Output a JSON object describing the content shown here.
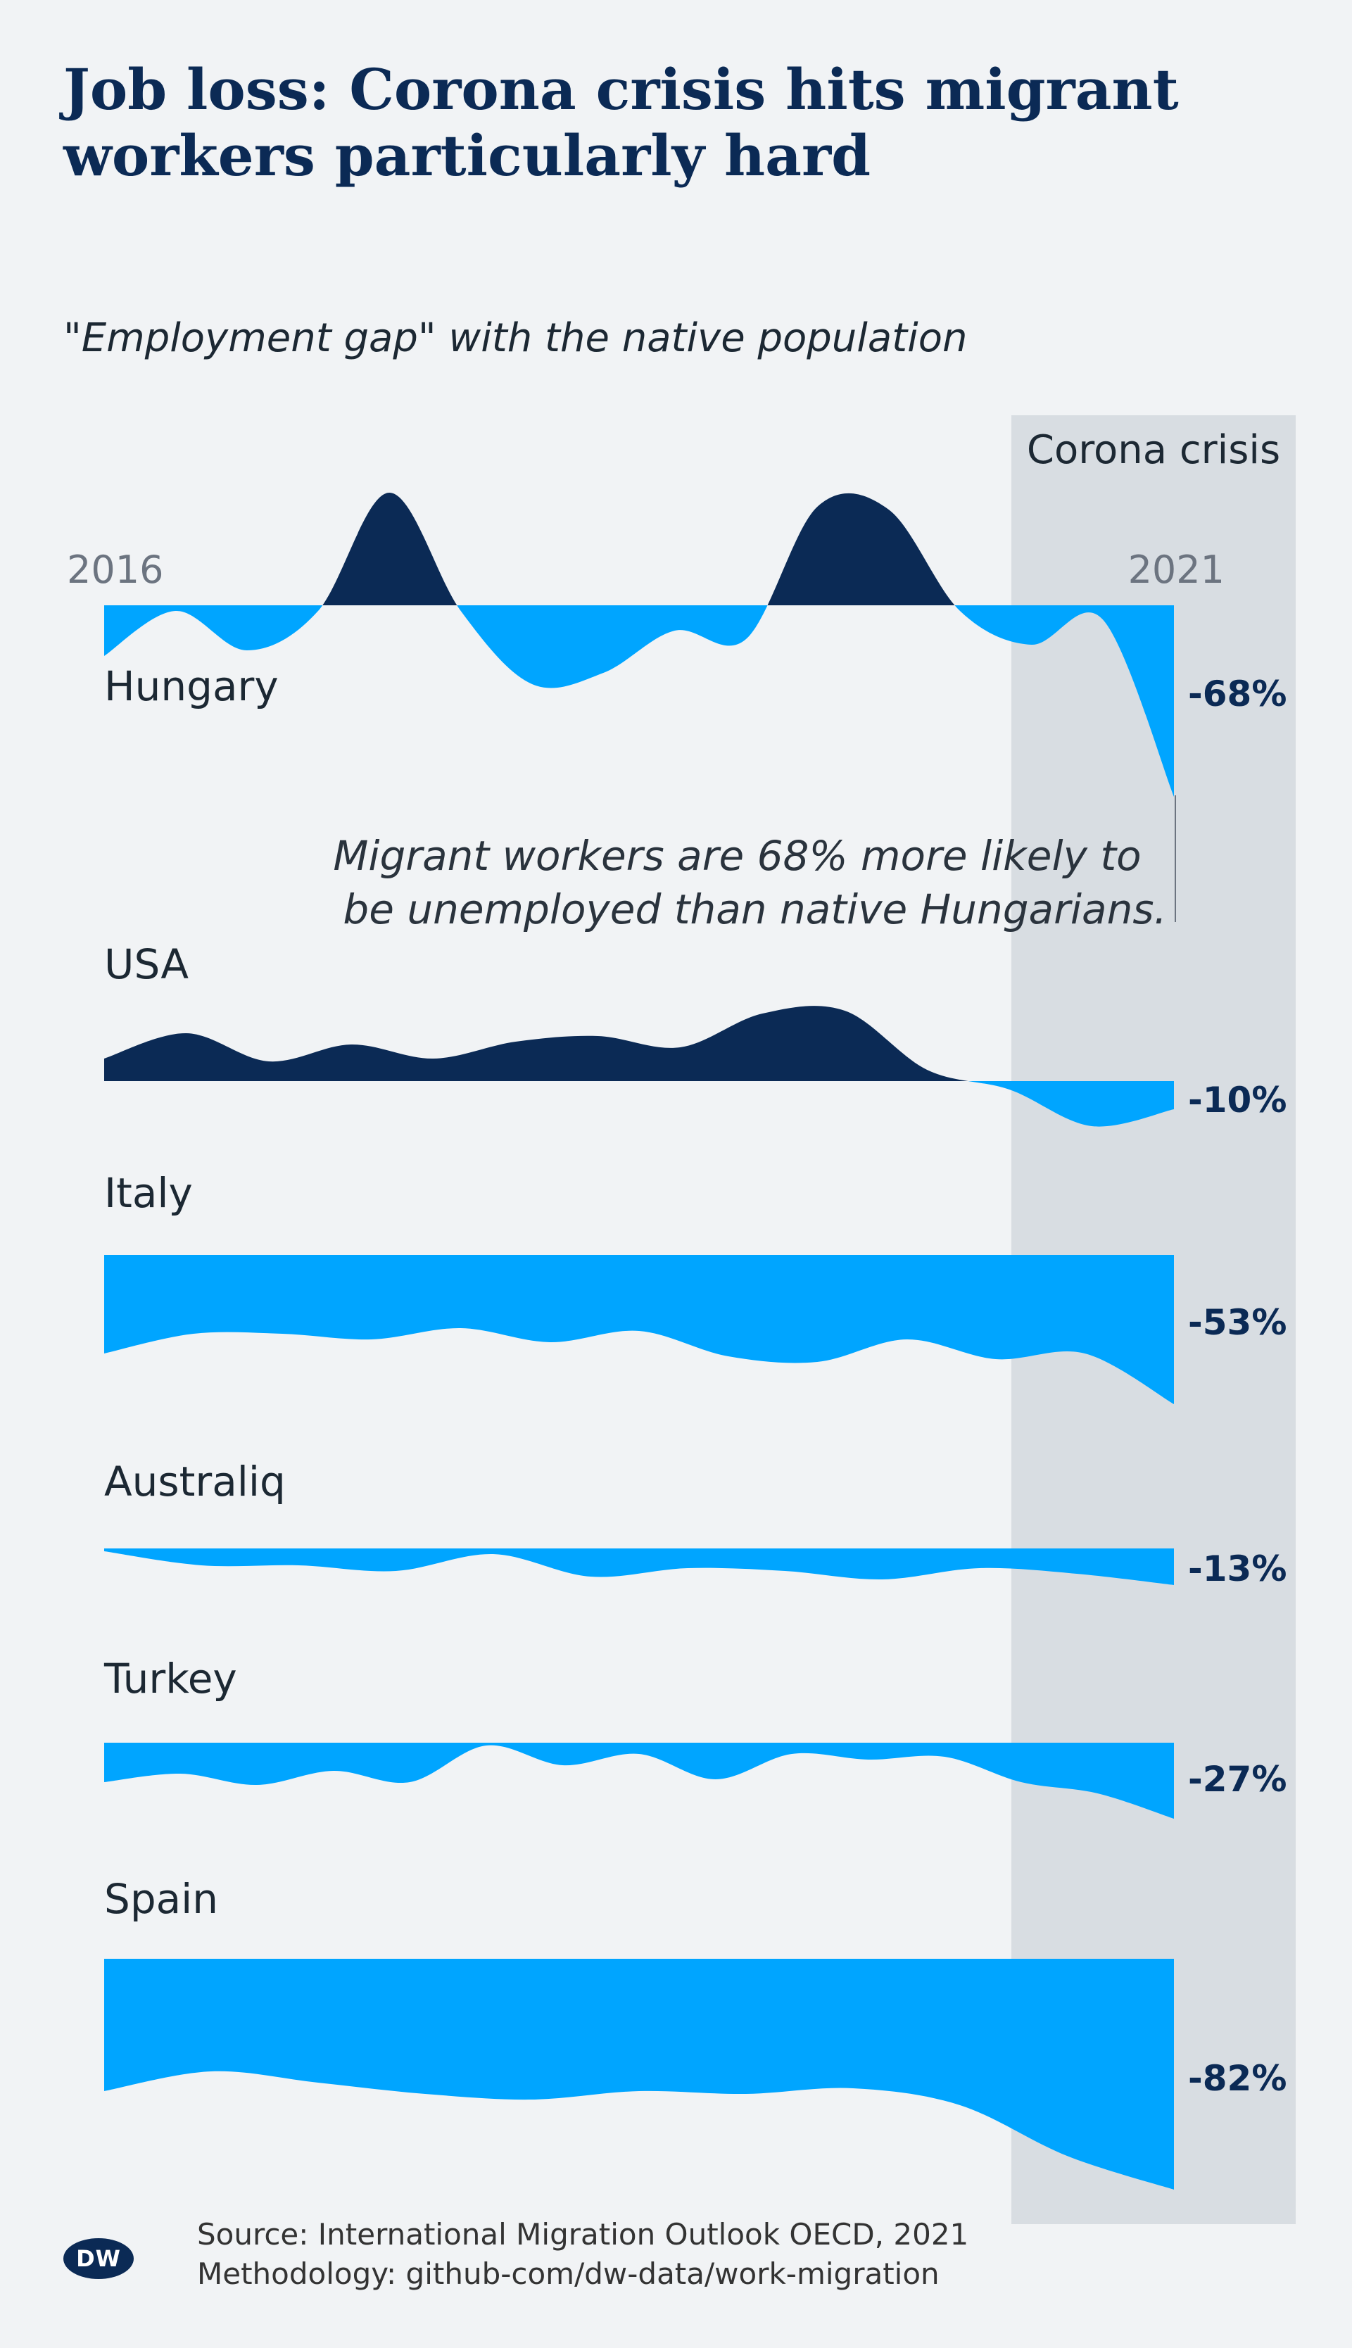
{
  "title": "Job loss: Corona crisis hits migrant workers particularly hard",
  "subtitle": "\"Employment gap\" with the native population",
  "colors": {
    "background": "#f1f3f5",
    "negative": "#00a5ff",
    "positive": "#0b2a55",
    "band": "#d8dde2",
    "text": "#1c2833"
  },
  "chart_data": {
    "type": "area",
    "x_start_label": "2016",
    "x_end_label": "2021",
    "x_range": [
      2016,
      2021
    ],
    "highlight": {
      "label": "Corona crisis",
      "from": 2020.2,
      "to": 2021.2
    },
    "annotation": "Migrant workers are 68% more likely to be unemployed than native Hungarians.",
    "series": [
      {
        "name": "Hungary",
        "final_label": "-68%",
        "final": -68,
        "values": [
          -18,
          -2,
          -16,
          -2,
          40,
          -2,
          -28,
          -24,
          -9,
          -12,
          35,
          34,
          -2,
          -14,
          -5,
          -68
        ]
      },
      {
        "name": "USA",
        "final_label": "-10%",
        "final": -10,
        "values": [
          8,
          17,
          7,
          13,
          8,
          14,
          16,
          12,
          24,
          25,
          4,
          -3,
          -16,
          -10
        ]
      },
      {
        "name": "Italy",
        "final_label": "-53%",
        "final": -53,
        "values": [
          -35,
          -28,
          -28,
          -30,
          -26,
          -31,
          -27,
          -36,
          -38,
          -30,
          -37,
          -35,
          -53
        ]
      },
      {
        "name": "Australiq",
        "final_label": "-13%",
        "final": -13,
        "values": [
          -1,
          -6,
          -6,
          -8,
          -2,
          -10,
          -7,
          -8,
          -11,
          -7,
          -9,
          -13
        ]
      },
      {
        "name": "Turkey",
        "final_label": "-27%",
        "final": -27,
        "values": [
          -14,
          -11,
          -15,
          -10,
          -14,
          -1,
          -8,
          -4,
          -13,
          -4,
          -6,
          -5,
          -14,
          -18,
          -27
        ]
      },
      {
        "name": "Spain",
        "final_label": "-82%",
        "final": -82,
        "values": [
          -47,
          -40,
          -44,
          -48,
          -50,
          -47,
          -48,
          -46,
          -52,
          -70,
          -82
        ]
      }
    ]
  },
  "footer": {
    "logo": "DW",
    "source": "Source: International Migration Outlook OECD, 2021",
    "methodology": "Methodology: github-com/dw-data/work-migration"
  }
}
